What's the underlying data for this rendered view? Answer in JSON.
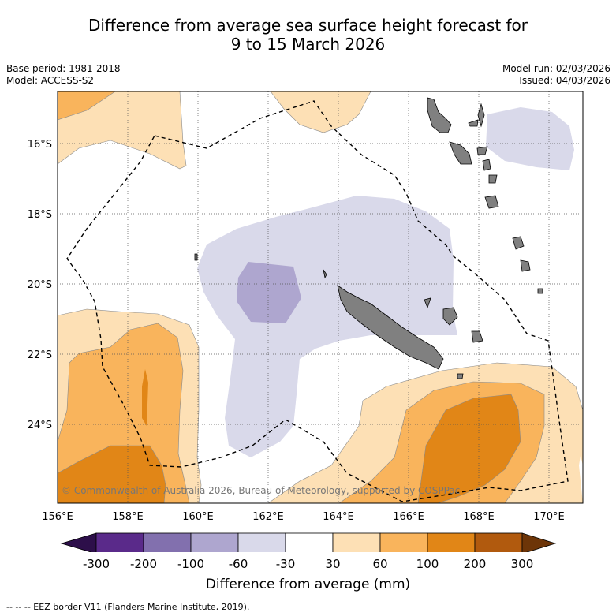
{
  "title": {
    "line1": "Difference from average sea surface height forecast for",
    "line2": "9 to 15 March 2026"
  },
  "meta": {
    "base_period": "Base period: 1981-2018",
    "model": "Model: ACCESS-S2",
    "model_run": "Model run: 02/03/2026",
    "issued": "Issued: 04/03/2026"
  },
  "map": {
    "lat_labels": [
      "16°S",
      "18°S",
      "20°S",
      "22°S",
      "24°S"
    ],
    "lon_labels": [
      "156°E",
      "158°E",
      "160°E",
      "162°E",
      "164°E",
      "166°E",
      "168°E",
      "170°E"
    ],
    "copyright": "© Commonwealth of Australia 2026, Bureau of Meteorology, supported by COSPPac",
    "land_color": "#808080",
    "eez_line_style": "dashed"
  },
  "colorbar": {
    "title": "Difference from average (mm)",
    "tick_labels": [
      "-300",
      "-200",
      "-100",
      "-60",
      "-30",
      "30",
      "60",
      "100",
      "200",
      "300"
    ],
    "colors": [
      "#2d0f4a",
      "#5a2a8a",
      "#8270ae",
      "#aea6cf",
      "#d9d9ea",
      "#ffffff",
      "#fde0b5",
      "#f9b45c",
      "#e18617",
      "#b15a0e",
      "#6d3508"
    ]
  },
  "footer": {
    "legend": "--  --  -- EEZ border V11 (Flanders Marine Institute, 2019)."
  }
}
